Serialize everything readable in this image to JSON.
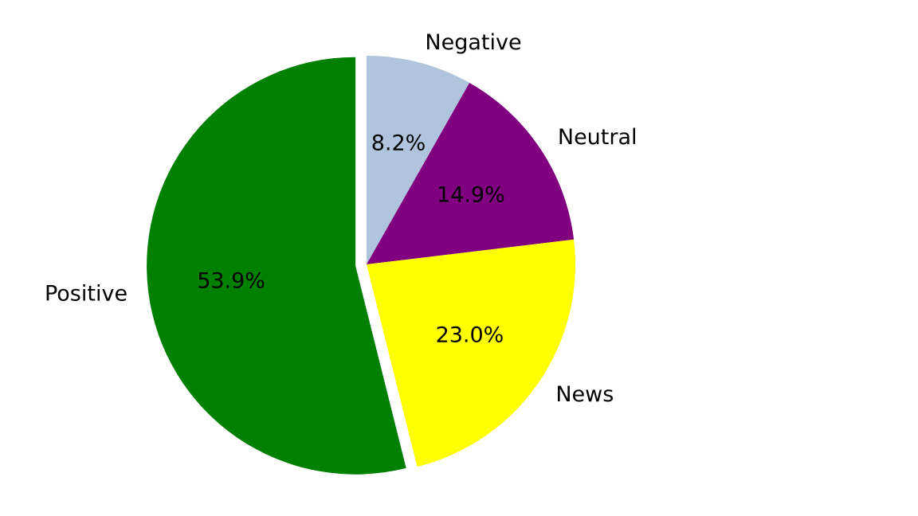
{
  "chart_data": {
    "type": "pie",
    "title": "",
    "slices": [
      {
        "label": "Negative",
        "value": 8.2,
        "pct_label": "8.2%",
        "color": "#b0c4de",
        "exploded": false
      },
      {
        "label": "Neutral",
        "value": 14.9,
        "pct_label": "14.9%",
        "color": "#800080",
        "exploded": false
      },
      {
        "label": "News",
        "value": 23.0,
        "pct_label": "23.0%",
        "color": "#ffff00",
        "exploded": false
      },
      {
        "label": "Positive",
        "value": 53.9,
        "pct_label": "53.9%",
        "color": "#008000",
        "exploded": true
      }
    ],
    "start_angle_deg": 90,
    "direction": "clockwise",
    "legend": "none"
  }
}
